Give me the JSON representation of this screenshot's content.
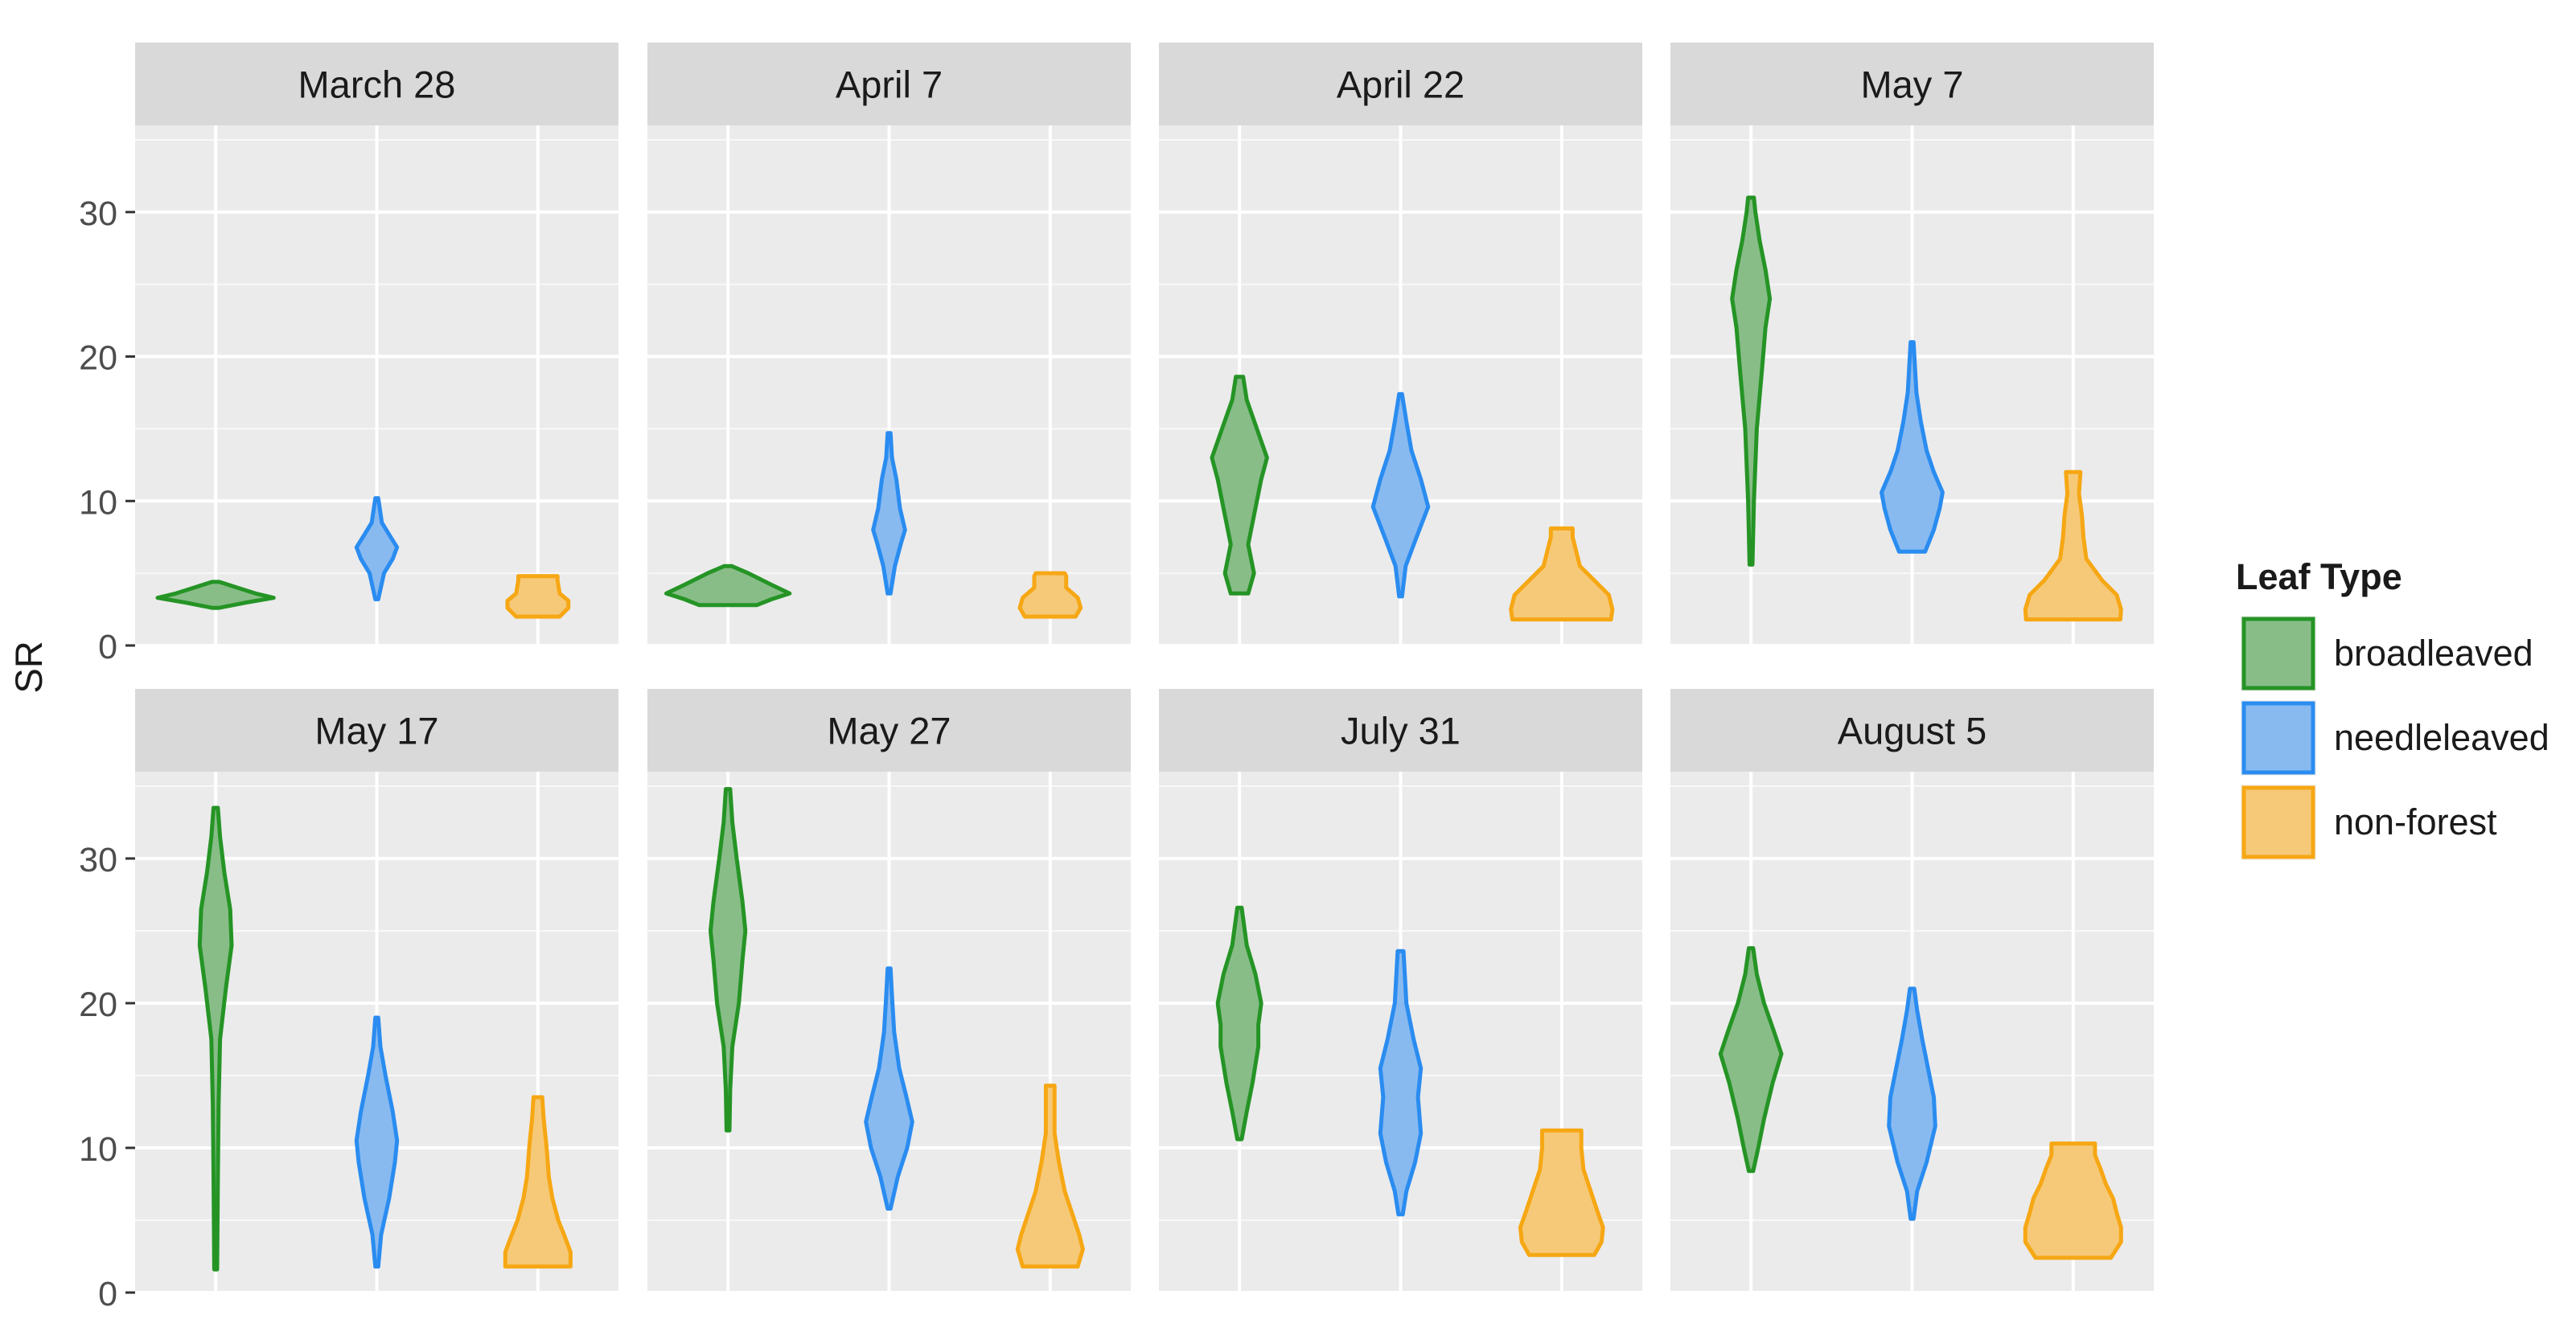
{
  "chart_data": {
    "type": "violin",
    "ylabel": "SR",
    "ylim": [
      0,
      36
    ],
    "yticks": [
      0,
      10,
      20,
      30
    ],
    "grid": true,
    "legend": {
      "title": "Leaf Type",
      "placement": "right",
      "items": [
        {
          "label": "broadleaved",
          "fill": "#88bd88",
          "stroke": "#259425"
        },
        {
          "label": "needleleaved",
          "fill": "#88baf0",
          "stroke": "#2a8cf0"
        },
        {
          "label": "non-forest",
          "fill": "#f6c978",
          "stroke": "#f6a714"
        }
      ]
    },
    "series_order": [
      "broadleaved",
      "needleleaved",
      "non-forest"
    ],
    "panels": [
      {
        "title": "March 28",
        "violins": [
          {
            "series": "broadleaved",
            "profile": [
              [
                2.6,
                0.04
              ],
              [
                3.0,
                0.45
              ],
              [
                3.3,
                0.8
              ],
              [
                3.6,
                0.55
              ],
              [
                4.0,
                0.3
              ],
              [
                4.4,
                0.05
              ]
            ]
          },
          {
            "series": "needleleaved",
            "profile": [
              [
                3.2,
                0.02
              ],
              [
                5.0,
                0.1
              ],
              [
                6.0,
                0.22
              ],
              [
                6.8,
                0.28
              ],
              [
                7.6,
                0.18
              ],
              [
                8.5,
                0.07
              ],
              [
                10.2,
                0.02
              ]
            ]
          },
          {
            "series": "non-forest",
            "profile": [
              [
                2.0,
                0.3
              ],
              [
                2.6,
                0.42
              ],
              [
                3.1,
                0.42
              ],
              [
                3.6,
                0.3
              ],
              [
                4.5,
                0.27
              ],
              [
                4.8,
                0.27
              ]
            ]
          }
        ]
      },
      {
        "title": "April 7",
        "violins": [
          {
            "series": "broadleaved",
            "profile": [
              [
                2.8,
                0.4
              ],
              [
                3.2,
                0.6
              ],
              [
                3.6,
                0.85
              ],
              [
                4.2,
                0.6
              ],
              [
                5.0,
                0.28
              ],
              [
                5.5,
                0.05
              ]
            ]
          },
          {
            "series": "needleleaved",
            "profile": [
              [
                3.6,
                0.02
              ],
              [
                5.5,
                0.08
              ],
              [
                7.0,
                0.16
              ],
              [
                8.0,
                0.22
              ],
              [
                9.5,
                0.15
              ],
              [
                11.5,
                0.1
              ],
              [
                13.0,
                0.04
              ],
              [
                14.7,
                0.02
              ]
            ]
          },
          {
            "series": "non-forest",
            "profile": [
              [
                2.0,
                0.35
              ],
              [
                2.6,
                0.42
              ],
              [
                3.3,
                0.38
              ],
              [
                4.0,
                0.22
              ],
              [
                4.8,
                0.22
              ],
              [
                5.0,
                0.2
              ]
            ]
          }
        ]
      },
      {
        "title": "April 22",
        "violins": [
          {
            "series": "broadleaved",
            "profile": [
              [
                3.6,
                0.12
              ],
              [
                5.0,
                0.2
              ],
              [
                7.0,
                0.12
              ],
              [
                9.0,
                0.2
              ],
              [
                11.5,
                0.3
              ],
              [
                13.0,
                0.38
              ],
              [
                15.0,
                0.24
              ],
              [
                17.0,
                0.1
              ],
              [
                18.6,
                0.05
              ]
            ]
          },
          {
            "series": "needleleaved",
            "profile": [
              [
                3.4,
                0.02
              ],
              [
                5.5,
                0.07
              ],
              [
                7.5,
                0.22
              ],
              [
                9.6,
                0.38
              ],
              [
                11.5,
                0.28
              ],
              [
                13.5,
                0.15
              ],
              [
                15.5,
                0.08
              ],
              [
                17.4,
                0.02
              ]
            ]
          },
          {
            "series": "non-forest",
            "profile": [
              [
                1.8,
                0.68
              ],
              [
                2.5,
                0.7
              ],
              [
                3.5,
                0.65
              ],
              [
                4.5,
                0.45
              ],
              [
                5.5,
                0.25
              ],
              [
                6.5,
                0.2
              ],
              [
                7.5,
                0.15
              ],
              [
                8.1,
                0.15
              ]
            ]
          }
        ]
      },
      {
        "title": "May 7",
        "violins": [
          {
            "series": "broadleaved",
            "profile": [
              [
                5.6,
                0.02
              ],
              [
                10.0,
                0.04
              ],
              [
                15.0,
                0.08
              ],
              [
                19.0,
                0.15
              ],
              [
                22.0,
                0.2
              ],
              [
                24.0,
                0.26
              ],
              [
                26.0,
                0.2
              ],
              [
                28.0,
                0.12
              ],
              [
                30.0,
                0.06
              ],
              [
                31.0,
                0.04
              ]
            ]
          },
          {
            "series": "needleleaved",
            "profile": [
              [
                6.5,
                0.18
              ],
              [
                8.0,
                0.3
              ],
              [
                9.5,
                0.38
              ],
              [
                10.6,
                0.42
              ],
              [
                12.0,
                0.3
              ],
              [
                13.5,
                0.2
              ],
              [
                15.5,
                0.12
              ],
              [
                17.5,
                0.06
              ],
              [
                21.0,
                0.02
              ]
            ]
          },
          {
            "series": "non-forest",
            "profile": [
              [
                1.8,
                0.65
              ],
              [
                2.5,
                0.66
              ],
              [
                3.5,
                0.6
              ],
              [
                4.5,
                0.4
              ],
              [
                6.0,
                0.18
              ],
              [
                7.5,
                0.14
              ],
              [
                9.0,
                0.12
              ],
              [
                10.5,
                0.08
              ],
              [
                12.0,
                0.1
              ]
            ]
          }
        ]
      },
      {
        "title": "May 17",
        "violins": [
          {
            "series": "broadleaved",
            "profile": [
              [
                1.6,
                0.02
              ],
              [
                8.0,
                0.03
              ],
              [
                13.0,
                0.04
              ],
              [
                17.5,
                0.06
              ],
              [
                21.0,
                0.14
              ],
              [
                24.0,
                0.22
              ],
              [
                26.5,
                0.2
              ],
              [
                29.0,
                0.12
              ],
              [
                31.5,
                0.06
              ],
              [
                33.5,
                0.03
              ]
            ]
          },
          {
            "series": "needleleaved",
            "profile": [
              [
                1.8,
                0.02
              ],
              [
                4.0,
                0.06
              ],
              [
                6.5,
                0.17
              ],
              [
                9.0,
                0.25
              ],
              [
                10.5,
                0.28
              ],
              [
                12.5,
                0.22
              ],
              [
                15.0,
                0.12
              ],
              [
                17.0,
                0.05
              ],
              [
                19.0,
                0.02
              ]
            ]
          },
          {
            "series": "non-forest",
            "profile": [
              [
                1.8,
                0.45
              ],
              [
                2.8,
                0.45
              ],
              [
                4.0,
                0.36
              ],
              [
                5.0,
                0.28
              ],
              [
                6.5,
                0.2
              ],
              [
                8.0,
                0.15
              ],
              [
                10.0,
                0.12
              ],
              [
                12.0,
                0.08
              ],
              [
                13.5,
                0.06
              ]
            ]
          }
        ]
      },
      {
        "title": "May 27",
        "violins": [
          {
            "series": "broadleaved",
            "profile": [
              [
                11.2,
                0.02
              ],
              [
                14.0,
                0.03
              ],
              [
                17.0,
                0.06
              ],
              [
                20.0,
                0.15
              ],
              [
                23.0,
                0.2
              ],
              [
                25.0,
                0.24
              ],
              [
                27.0,
                0.2
              ],
              [
                30.0,
                0.12
              ],
              [
                32.5,
                0.06
              ],
              [
                34.8,
                0.03
              ]
            ]
          },
          {
            "series": "needleleaved",
            "profile": [
              [
                5.8,
                0.02
              ],
              [
                8.0,
                0.12
              ],
              [
                10.0,
                0.25
              ],
              [
                11.8,
                0.32
              ],
              [
                13.5,
                0.24
              ],
              [
                15.5,
                0.14
              ],
              [
                18.0,
                0.07
              ],
              [
                20.5,
                0.04
              ],
              [
                22.4,
                0.02
              ]
            ]
          },
          {
            "series": "non-forest",
            "profile": [
              [
                1.8,
                0.38
              ],
              [
                3.0,
                0.45
              ],
              [
                4.0,
                0.4
              ],
              [
                5.5,
                0.3
              ],
              [
                7.0,
                0.2
              ],
              [
                9.0,
                0.12
              ],
              [
                11.0,
                0.06
              ],
              [
                13.0,
                0.06
              ],
              [
                14.3,
                0.06
              ]
            ]
          }
        ]
      },
      {
        "title": "July 31",
        "violins": [
          {
            "series": "broadleaved",
            "profile": [
              [
                10.6,
                0.03
              ],
              [
                12.5,
                0.1
              ],
              [
                14.5,
                0.18
              ],
              [
                17.0,
                0.26
              ],
              [
                18.5,
                0.26
              ],
              [
                20.0,
                0.3
              ],
              [
                22.0,
                0.22
              ],
              [
                24.0,
                0.1
              ],
              [
                26.6,
                0.03
              ]
            ]
          },
          {
            "series": "needleleaved",
            "profile": [
              [
                5.4,
                0.03
              ],
              [
                7.0,
                0.08
              ],
              [
                9.0,
                0.2
              ],
              [
                11.0,
                0.28
              ],
              [
                13.5,
                0.24
              ],
              [
                15.5,
                0.28
              ],
              [
                17.5,
                0.18
              ],
              [
                20.0,
                0.08
              ],
              [
                23.6,
                0.04
              ]
            ]
          },
          {
            "series": "non-forest",
            "profile": [
              [
                2.6,
                0.45
              ],
              [
                3.5,
                0.55
              ],
              [
                4.5,
                0.57
              ],
              [
                5.5,
                0.5
              ],
              [
                7.0,
                0.4
              ],
              [
                8.5,
                0.3
              ],
              [
                10.0,
                0.27
              ],
              [
                11.2,
                0.27
              ]
            ]
          }
        ]
      },
      {
        "title": "August 5",
        "violins": [
          {
            "series": "broadleaved",
            "profile": [
              [
                8.4,
                0.03
              ],
              [
                10.0,
                0.1
              ],
              [
                12.0,
                0.18
              ],
              [
                14.5,
                0.3
              ],
              [
                16.5,
                0.42
              ],
              [
                18.0,
                0.32
              ],
              [
                20.0,
                0.18
              ],
              [
                22.0,
                0.08
              ],
              [
                23.8,
                0.03
              ]
            ]
          },
          {
            "series": "needleleaved",
            "profile": [
              [
                5.1,
                0.02
              ],
              [
                7.0,
                0.07
              ],
              [
                9.0,
                0.2
              ],
              [
                11.5,
                0.32
              ],
              [
                13.5,
                0.3
              ],
              [
                15.5,
                0.22
              ],
              [
                17.5,
                0.14
              ],
              [
                19.5,
                0.07
              ],
              [
                21.0,
                0.03
              ]
            ]
          },
          {
            "series": "non-forest",
            "profile": [
              [
                2.4,
                0.52
              ],
              [
                3.5,
                0.66
              ],
              [
                4.5,
                0.66
              ],
              [
                5.5,
                0.6
              ],
              [
                6.5,
                0.55
              ],
              [
                7.5,
                0.45
              ],
              [
                8.5,
                0.38
              ],
              [
                9.5,
                0.3
              ],
              [
                10.3,
                0.3
              ]
            ]
          }
        ]
      }
    ]
  }
}
